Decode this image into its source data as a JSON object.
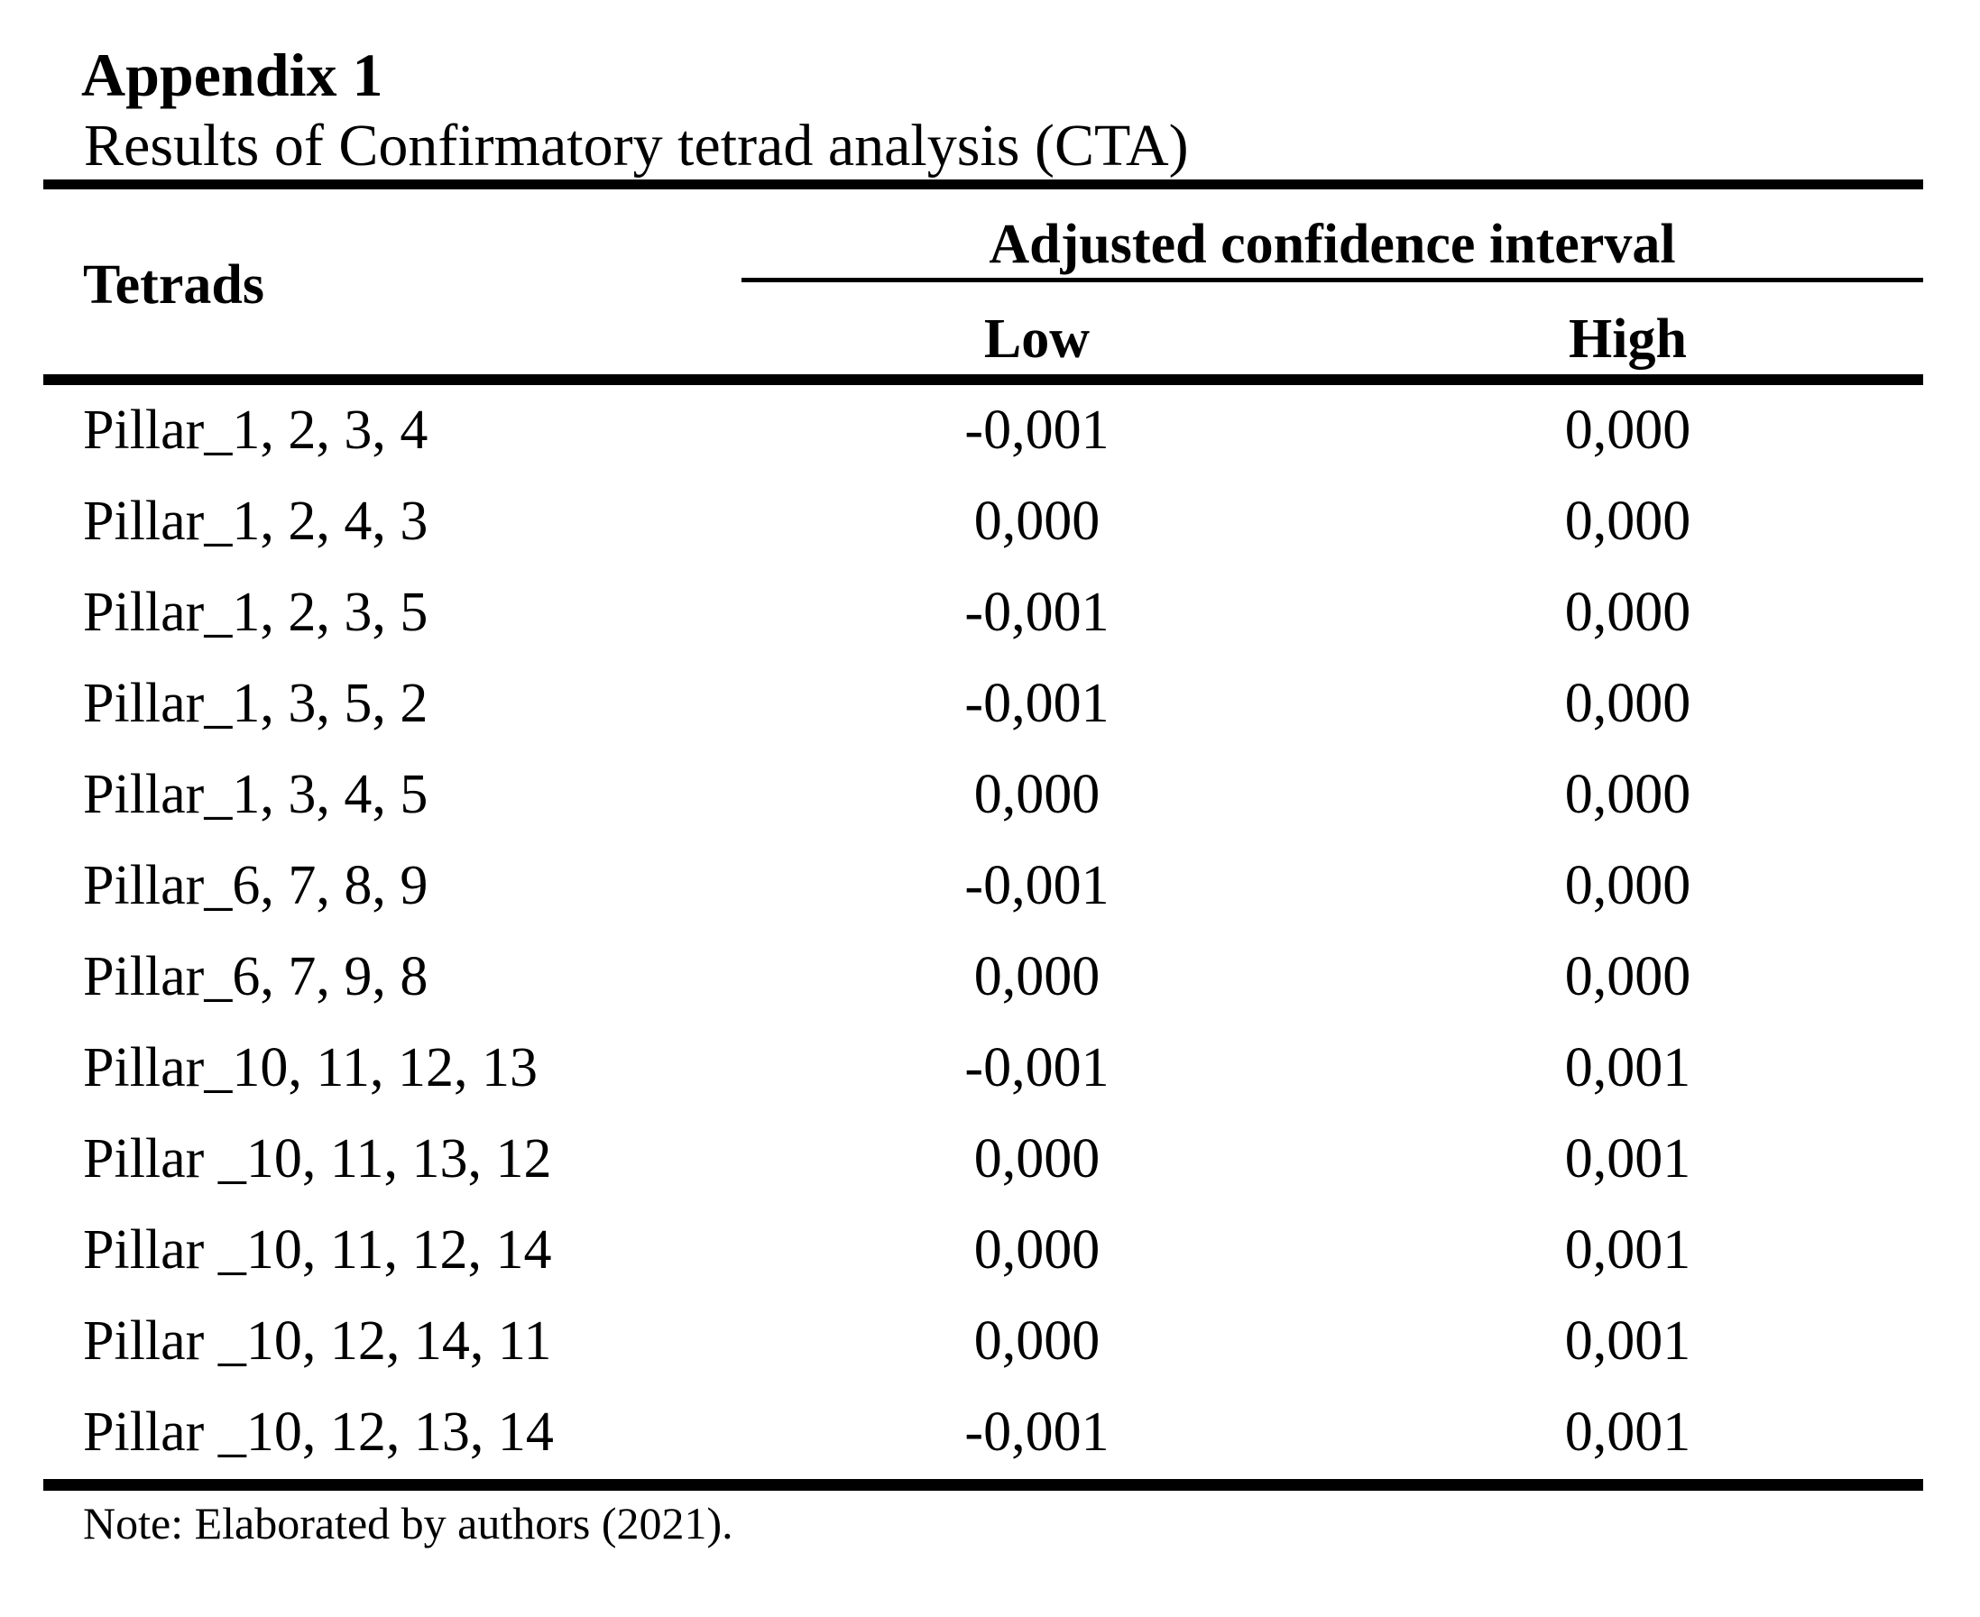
{
  "page": {
    "title": "Appendix 1",
    "subtitle": "Results of Confirmatory tetrad analysis (CTA)",
    "note": "Note: Elaborated by authors (2021)."
  },
  "table": {
    "tetrads_header": "Tetrads",
    "group_header": "Adjusted confidence interval",
    "low_header": "Low",
    "high_header": "High",
    "rows": [
      {
        "tetrad": "Pillar_1, 2, 3, 4",
        "low": "-0,001",
        "high": "0,000"
      },
      {
        "tetrad": "Pillar_1, 2, 4, 3",
        "low": "0,000",
        "high": "0,000"
      },
      {
        "tetrad": "Pillar_1, 2, 3, 5",
        "low": "-0,001",
        "high": "0,000"
      },
      {
        "tetrad": "Pillar_1, 3, 5, 2",
        "low": "-0,001",
        "high": "0,000"
      },
      {
        "tetrad": "Pillar_1, 3, 4, 5",
        "low": "0,000",
        "high": "0,000"
      },
      {
        "tetrad": "Pillar_6, 7, 8, 9",
        "low": "-0,001",
        "high": "0,000"
      },
      {
        "tetrad": "Pillar_6, 7, 9, 8",
        "low": "0,000",
        "high": "0,000"
      },
      {
        "tetrad": "Pillar_10, 11, 12, 13",
        "low": "-0,001",
        "high": "0,001"
      },
      {
        "tetrad": "Pillar _10, 11, 13, 12",
        "low": "0,000",
        "high": "0,001"
      },
      {
        "tetrad": "Pillar _10, 11, 12, 14",
        "low": "0,000",
        "high": "0,001"
      },
      {
        "tetrad": "Pillar _10, 12, 14, 11",
        "low": "0,000",
        "high": "0,001"
      },
      {
        "tetrad": "Pillar _10, 12, 13, 14",
        "low": "-0,001",
        "high": "0,001"
      }
    ]
  },
  "colors": {
    "text": "#000000",
    "background": "#ffffff",
    "rule": "#000000"
  }
}
